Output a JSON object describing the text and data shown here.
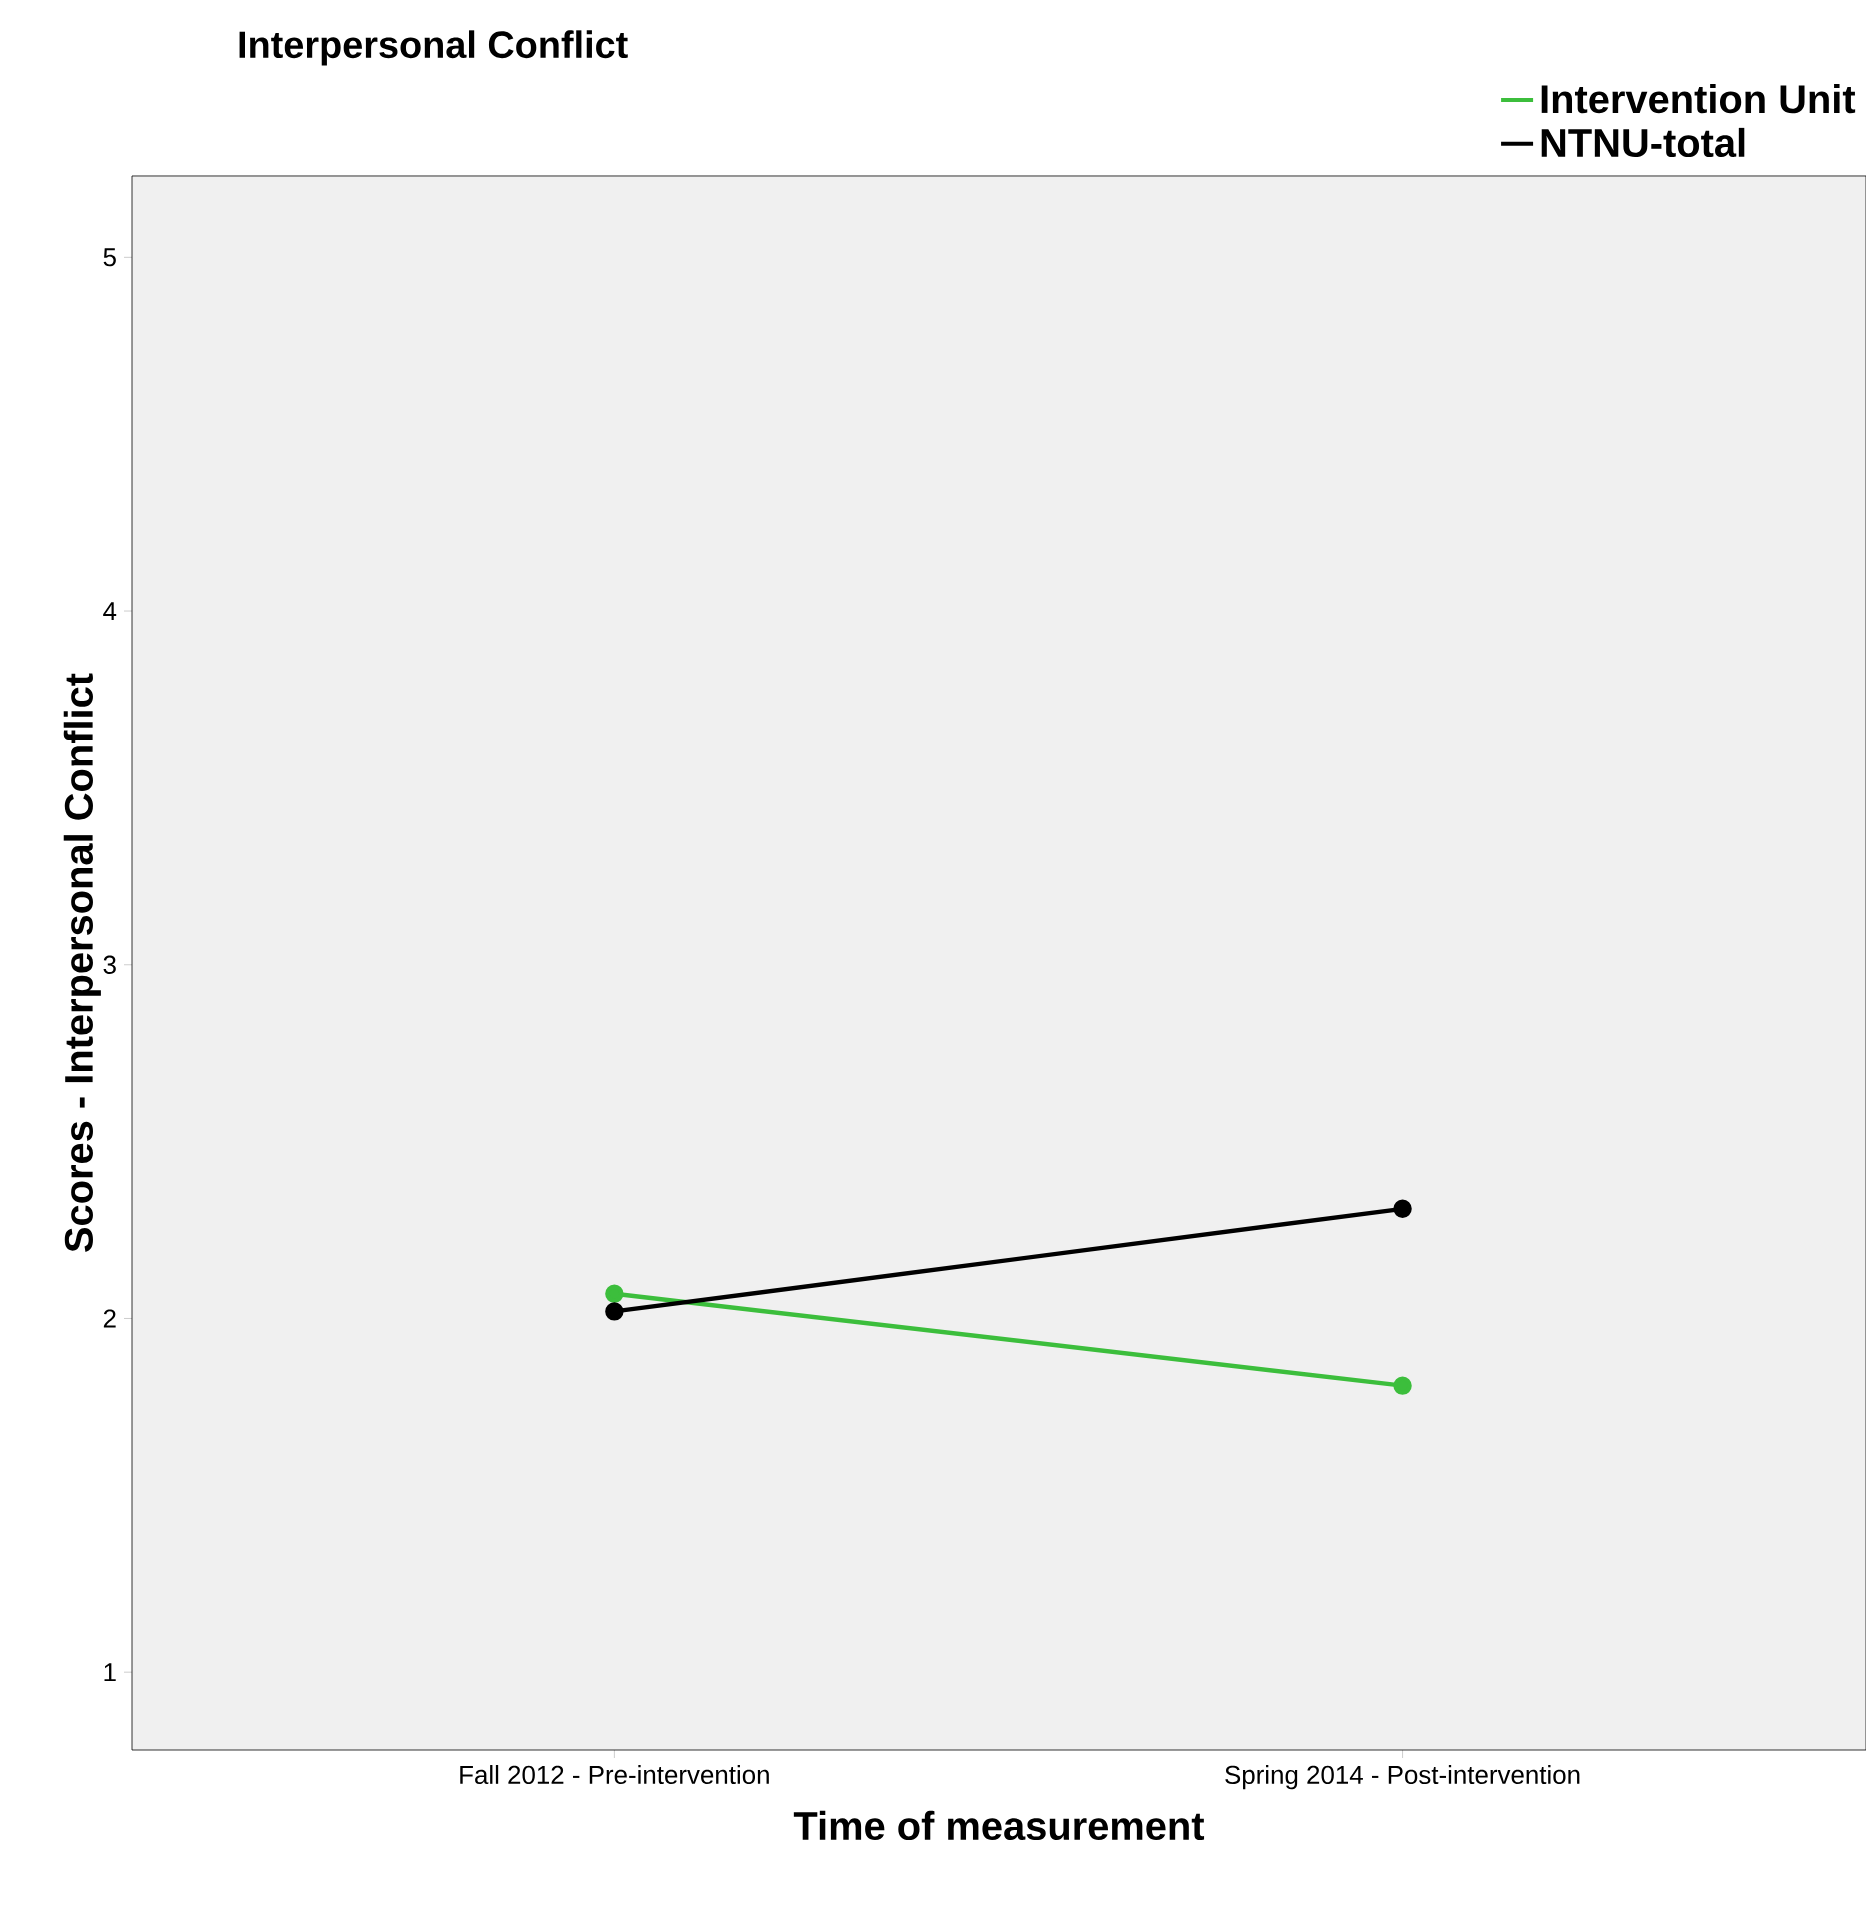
{
  "chart_data": {
    "type": "line",
    "title": "Interpersonal Conflict",
    "xlabel": "Time of measurement",
    "ylabel": "Scores - Interpersonal Conflict",
    "categories": [
      "Fall 2012 - Pre-intervention",
      "Spring 2014 - Post-intervention"
    ],
    "series": [
      {
        "name": "Intervention Unit",
        "color": "#3cbe3c",
        "values": [
          2.07,
          1.81
        ]
      },
      {
        "name": "NTNU-total",
        "color": "#000000",
        "values": [
          2.02,
          2.31
        ]
      }
    ],
    "ylim": [
      0.78,
      5.23
    ],
    "yticks": [
      1,
      2,
      3,
      4,
      5
    ],
    "grid": false,
    "legend": "top right",
    "marker": "circle",
    "line_style": "solid"
  }
}
